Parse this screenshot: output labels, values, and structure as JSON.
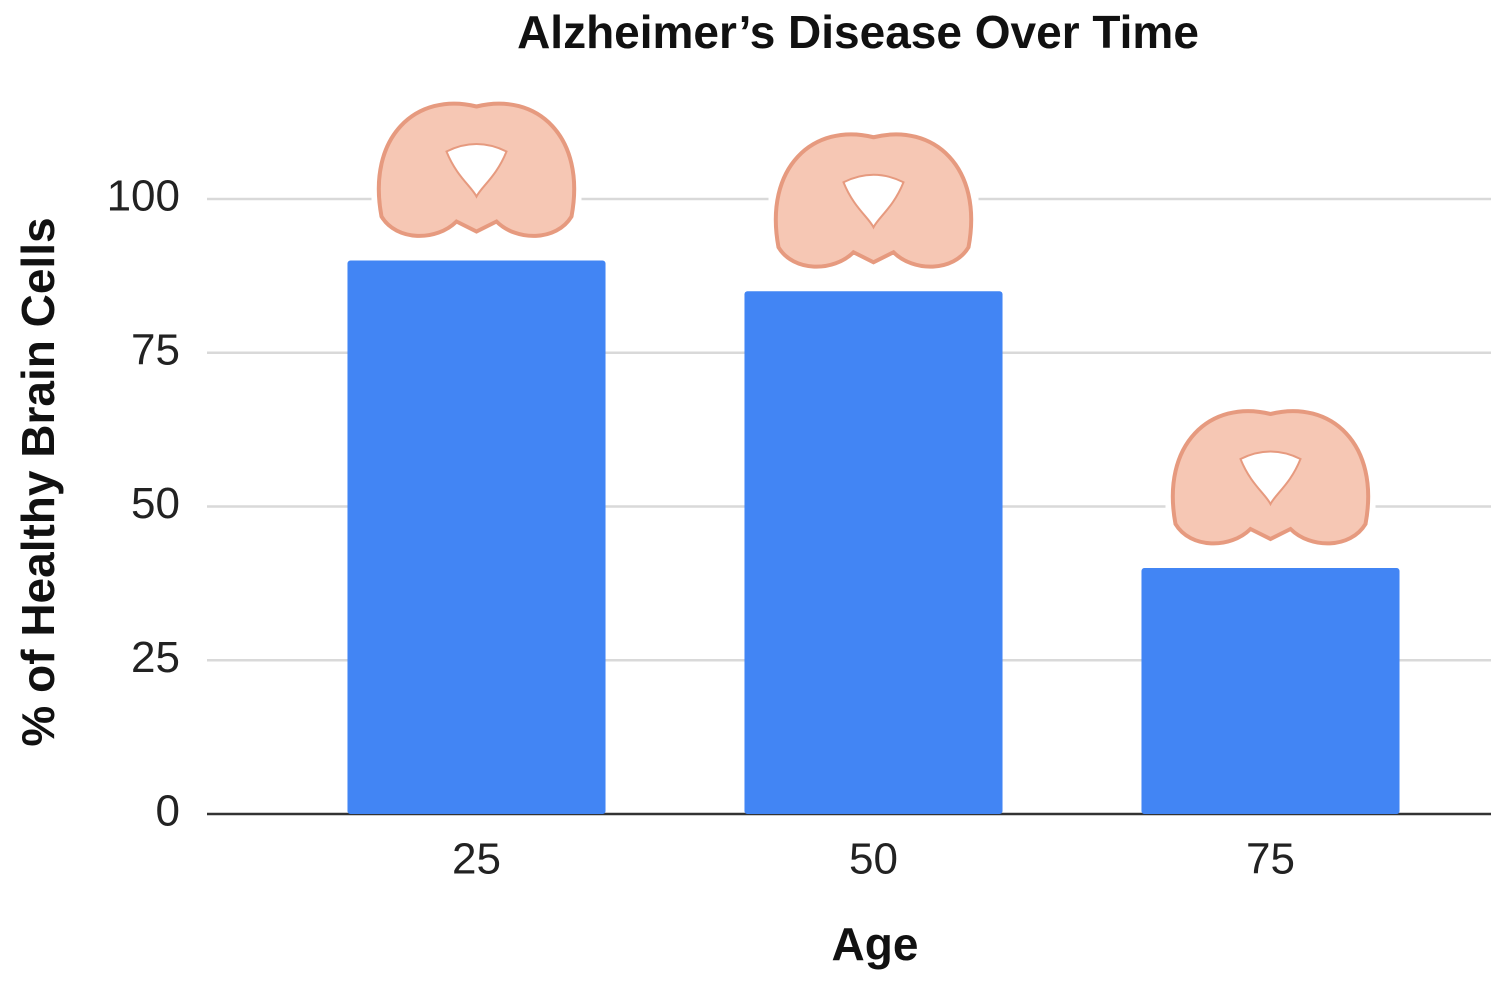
{
  "chart_data": {
    "type": "bar",
    "title": "Alzheimer’s Disease Over Time",
    "x_label": "Age",
    "y_label": "% of Healthy Brain Cells",
    "categories": [
      "25",
      "50",
      "75"
    ],
    "values": [
      90,
      85,
      40
    ],
    "color": "#4285f4",
    "ylim": [
      0,
      100
    ],
    "yticks": [
      0,
      25,
      50,
      75,
      100
    ],
    "grid": true
  }
}
